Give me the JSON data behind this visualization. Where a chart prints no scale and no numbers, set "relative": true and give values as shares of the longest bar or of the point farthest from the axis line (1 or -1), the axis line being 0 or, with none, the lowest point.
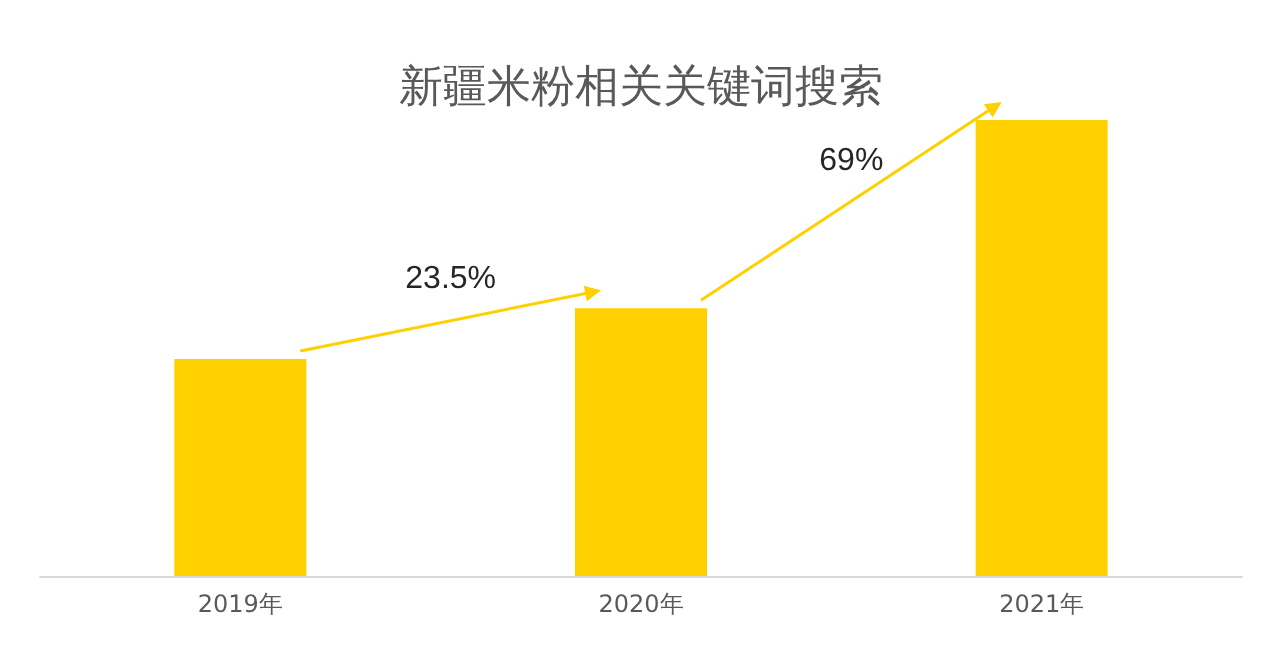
{
  "chart_data": {
    "type": "bar",
    "title": "新疆米粉相关关键词搜索",
    "categories": [
      "2019年",
      "2020年",
      "2021年"
    ],
    "values": [
      0.476,
      0.587,
      1
    ],
    "color": "#ffd000",
    "relative": true,
    "annotations": [
      "23.5%",
      "69%"
    ]
  }
}
